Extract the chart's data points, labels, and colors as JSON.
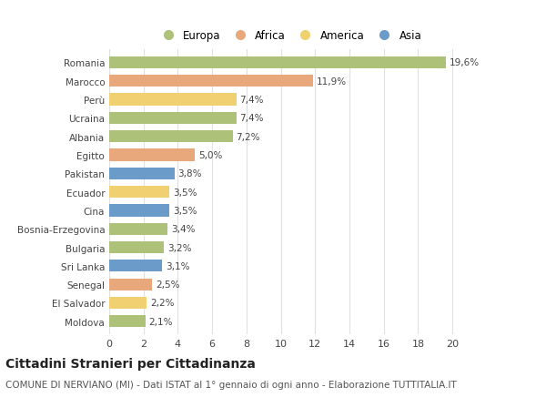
{
  "countries": [
    "Romania",
    "Marocco",
    "Perù",
    "Ucraina",
    "Albania",
    "Egitto",
    "Pakistan",
    "Ecuador",
    "Cina",
    "Bosnia-Erzegovina",
    "Bulgaria",
    "Sri Lanka",
    "Senegal",
    "El Salvador",
    "Moldova"
  ],
  "values": [
    19.6,
    11.9,
    7.4,
    7.4,
    7.2,
    5.0,
    3.8,
    3.5,
    3.5,
    3.4,
    3.2,
    3.1,
    2.5,
    2.2,
    2.1
  ],
  "labels": [
    "19,6%",
    "11,9%",
    "7,4%",
    "7,4%",
    "7,2%",
    "5,0%",
    "3,8%",
    "3,5%",
    "3,5%",
    "3,4%",
    "3,2%",
    "3,1%",
    "2,5%",
    "2,2%",
    "2,1%"
  ],
  "continents": [
    "Europa",
    "Africa",
    "America",
    "Europa",
    "Europa",
    "Africa",
    "Asia",
    "America",
    "Asia",
    "Europa",
    "Europa",
    "Asia",
    "Africa",
    "America",
    "Europa"
  ],
  "colors": {
    "Europa": "#adc178",
    "Africa": "#e8a87c",
    "America": "#f0d070",
    "Asia": "#6b9bc8"
  },
  "xlim": [
    0,
    21
  ],
  "xticks": [
    0,
    2,
    4,
    6,
    8,
    10,
    12,
    14,
    16,
    18,
    20
  ],
  "title": "Cittadini Stranieri per Cittadinanza",
  "subtitle": "COMUNE DI NERVIANO (MI) - Dati ISTAT al 1° gennaio di ogni anno - Elaborazione TUTTITALIA.IT",
  "bg_color": "#ffffff",
  "grid_color": "#e0e0e0",
  "bar_height": 0.65,
  "label_fontsize": 7.5,
  "ytick_fontsize": 7.5,
  "xtick_fontsize": 8,
  "title_fontsize": 10,
  "subtitle_fontsize": 7.5,
  "legend_order": [
    "Europa",
    "Africa",
    "America",
    "Asia"
  ]
}
